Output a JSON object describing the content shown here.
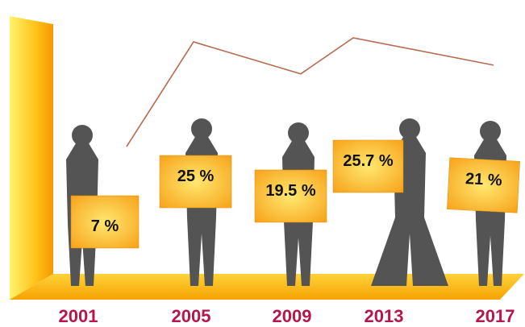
{
  "chart_data": {
    "type": "line",
    "categories": [
      "2001",
      "2005",
      "2009",
      "2013",
      "2017"
    ],
    "values": [
      7,
      25,
      19.5,
      25.7,
      21
    ],
    "value_labels": [
      "7 %",
      "25 %",
      "19.5 %",
      "25.7 %",
      "21 %"
    ],
    "color": "#b86a4f"
  }
}
